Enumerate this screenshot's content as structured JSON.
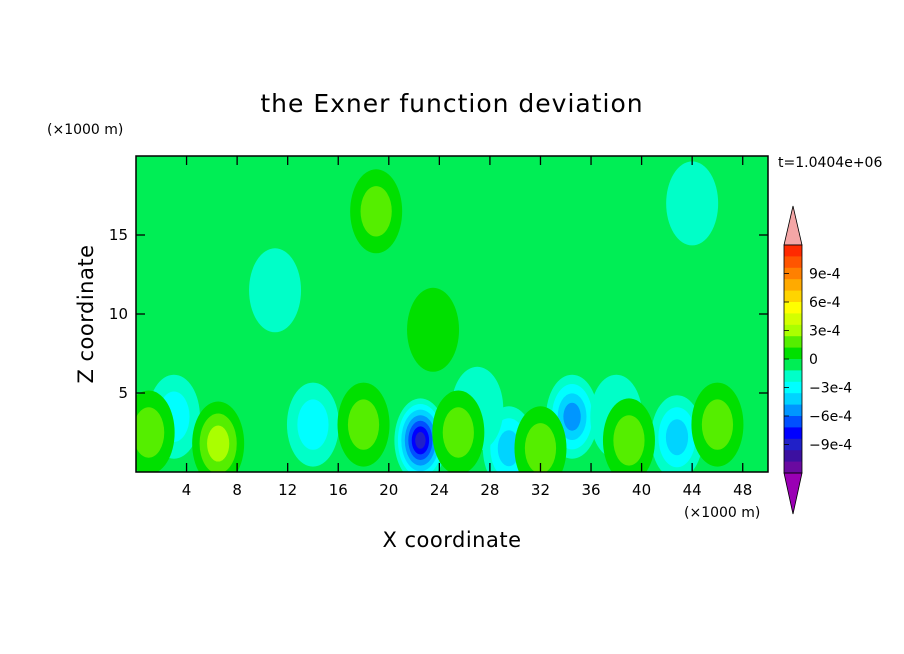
{
  "chart_data": {
    "type": "heatmap",
    "title": "the Exner function deviation",
    "xlabel": "X coordinate",
    "ylabel": "Z coordinate",
    "x_unit": "(×1000 m)",
    "y_unit": "(×1000 m)",
    "time_label": "t=1.0404e+06",
    "xlim": [
      0,
      50
    ],
    "ylim": [
      0,
      20
    ],
    "x_ticks": [
      "4",
      "8",
      "12",
      "16",
      "20",
      "24",
      "28",
      "32",
      "36",
      "40",
      "44",
      "48"
    ],
    "x_tick_values": [
      4,
      8,
      12,
      16,
      20,
      24,
      28,
      32,
      36,
      40,
      44,
      48
    ],
    "y_ticks": [
      "5",
      "10",
      "15"
    ],
    "y_tick_values": [
      5,
      10,
      15
    ],
    "colorbar": {
      "range": [
        -0.0012,
        0.0012
      ],
      "labels": [
        "9e-4",
        "6e-4",
        "3e-4",
        "0",
        "−3e-4",
        "−6e-4",
        "−9e-4"
      ],
      "label_values": [
        0.0009,
        0.0006,
        0.0003,
        0,
        -0.0003,
        -0.0006,
        -0.0009
      ],
      "colors_top_to_bottom": [
        "#f4a6a6",
        "#ff2a00",
        "#ff5500",
        "#ff8000",
        "#ffaa00",
        "#ffd400",
        "#ffff00",
        "#d4ff00",
        "#aaff00",
        "#55ee00",
        "#00e000",
        "#00ee55",
        "#00ffc8",
        "#00ffff",
        "#00d4ff",
        "#0096ff",
        "#0050ff",
        "#0000ff",
        "#2020c8",
        "#3c10a0",
        "#6a0aa0",
        "#9a00b4"
      ]
    },
    "background_field_value": -5e-05,
    "features": [
      {
        "x": 22.5,
        "z": 2.0,
        "value": -0.00078
      },
      {
        "x": 34.5,
        "z": 3.5,
        "value": -0.00045
      },
      {
        "x": 42.8,
        "z": 2.2,
        "value": -0.00042
      },
      {
        "x": 29.5,
        "z": 1.5,
        "value": -0.0004
      },
      {
        "x": 3.0,
        "z": 3.5,
        "value": -0.00028
      },
      {
        "x": 14.0,
        "z": 3.0,
        "value": -0.00022
      },
      {
        "x": 27.0,
        "z": 4.0,
        "value": -0.0002
      },
      {
        "x": 38.0,
        "z": 3.5,
        "value": -0.00018
      },
      {
        "x": 11.0,
        "z": 11.5,
        "value": -0.00012
      },
      {
        "x": 44.0,
        "z": 17.0,
        "value": -0.0001
      },
      {
        "x": 6.5,
        "z": 1.8,
        "value": 0.00028
      },
      {
        "x": 1.0,
        "z": 2.5,
        "value": 0.00022
      },
      {
        "x": 18.0,
        "z": 3.0,
        "value": 0.00018
      },
      {
        "x": 25.5,
        "z": 2.5,
        "value": 0.00015
      },
      {
        "x": 32.0,
        "z": 1.5,
        "value": 0.00018
      },
      {
        "x": 39.0,
        "z": 2.0,
        "value": 0.0002
      },
      {
        "x": 46.0,
        "z": 3.0,
        "value": 0.00015
      },
      {
        "x": 19.0,
        "z": 16.5,
        "value": 0.00012
      },
      {
        "x": 23.5,
        "z": 9.0,
        "value": 0.0001
      }
    ]
  }
}
